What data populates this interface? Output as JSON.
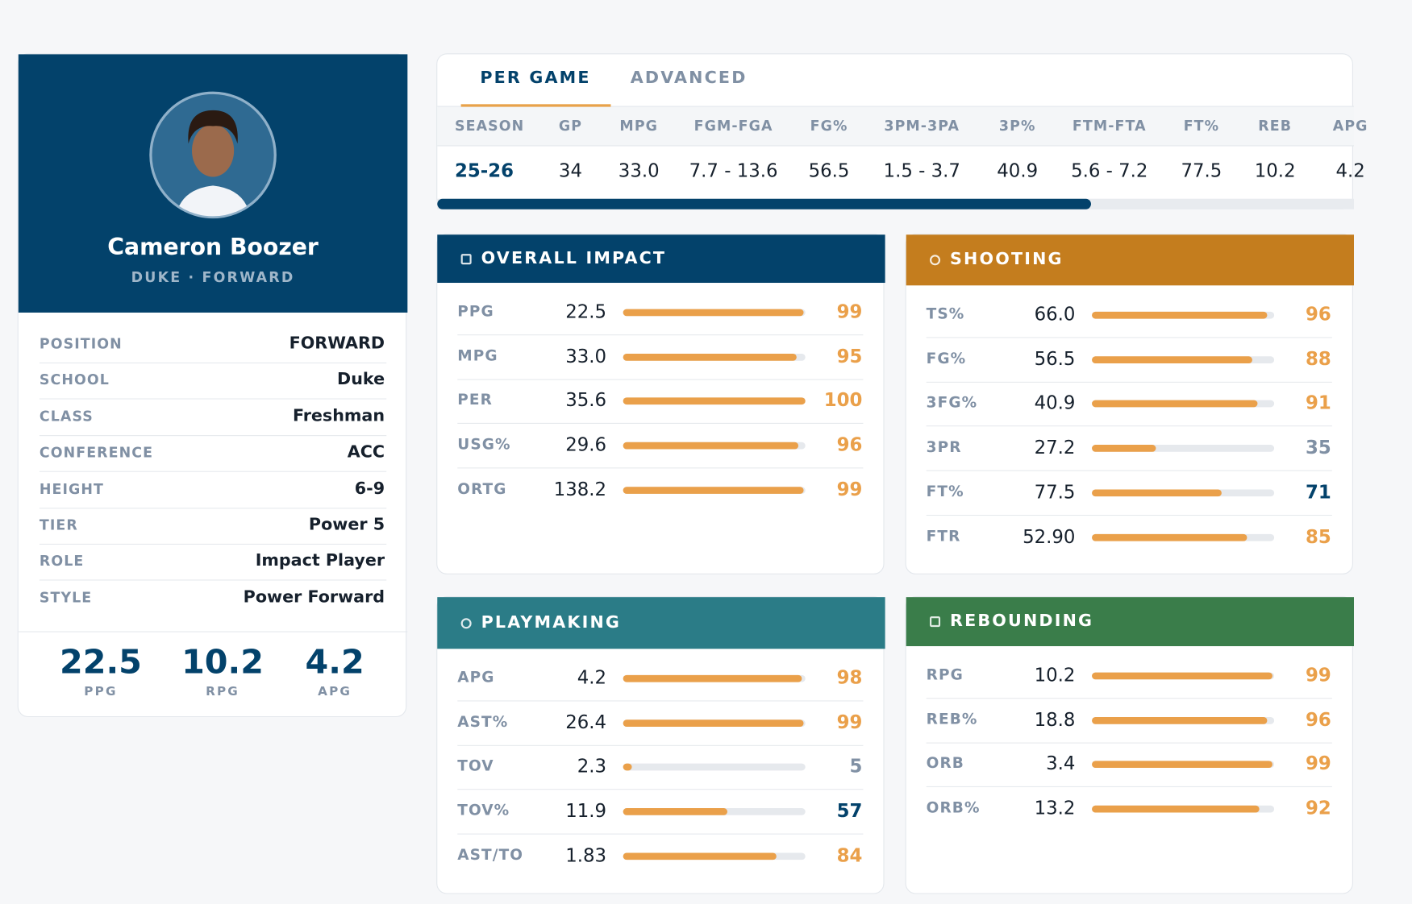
{
  "player": {
    "name": "Cameron Boozer",
    "subtitle": "DUKE · FORWARD",
    "info": [
      {
        "label": "POSITION",
        "value": "FORWARD"
      },
      {
        "label": "SCHOOL",
        "value": "Duke"
      },
      {
        "label": "CLASS",
        "value": "Freshman"
      },
      {
        "label": "CONFERENCE",
        "value": "ACC"
      },
      {
        "label": "HEIGHT",
        "value": "6-9"
      },
      {
        "label": "TIER",
        "value": "Power 5"
      },
      {
        "label": "ROLE",
        "value": "Impact Player"
      },
      {
        "label": "STYLE",
        "value": "Power Forward"
      }
    ],
    "stats": [
      {
        "value": "22.5",
        "label": "PPG"
      },
      {
        "value": "10.2",
        "label": "RPG"
      },
      {
        "value": "4.2",
        "label": "APG"
      }
    ]
  },
  "tabs": [
    "PER GAME",
    "ADVANCED"
  ],
  "table": {
    "columns": [
      "SEASON",
      "GP",
      "MPG",
      "FGM-FGA",
      "FG%",
      "3PM-3PA",
      "3P%",
      "FTM-FTA",
      "FT%",
      "REB",
      "APG"
    ],
    "rows": [
      [
        "25-26",
        "34",
        "33.0",
        "7.7 - 13.6",
        "56.5",
        "1.5 - 3.7",
        "40.9",
        "5.6 - 7.2",
        "77.5",
        "10.2",
        "4.2"
      ]
    ]
  },
  "panels": [
    {
      "title": "OVERALL IMPACT",
      "color": "#03426b",
      "rows": [
        {
          "label": "PPG",
          "value": "22.5",
          "percentile": 99
        },
        {
          "label": "MPG",
          "value": "33.0",
          "percentile": 95
        },
        {
          "label": "PER",
          "value": "35.6",
          "percentile": 100
        },
        {
          "label": "USG%",
          "value": "29.6",
          "percentile": 96
        },
        {
          "label": "ORTG",
          "value": "138.2",
          "percentile": 99
        }
      ]
    },
    {
      "title": "SHOOTING",
      "color": "#c47d1e",
      "rows": [
        {
          "label": "TS%",
          "value": "66.0",
          "percentile": 96
        },
        {
          "label": "FG%",
          "value": "56.5",
          "percentile": 88
        },
        {
          "label": "3FG%",
          "value": "40.9",
          "percentile": 91
        },
        {
          "label": "3PR",
          "value": "27.2",
          "percentile": 35
        },
        {
          "label": "FT%",
          "value": "77.5",
          "percentile": 71
        },
        {
          "label": "FTR",
          "value": "52.90",
          "percentile": 85
        }
      ]
    },
    {
      "title": "PLAYMAKING",
      "color": "#2b7c87",
      "rows": [
        {
          "label": "APG",
          "value": "4.2",
          "percentile": 98
        },
        {
          "label": "AST%",
          "value": "26.4",
          "percentile": 99
        },
        {
          "label": "TOV",
          "value": "2.3",
          "percentile": 5
        },
        {
          "label": "TOV%",
          "value": "11.9",
          "percentile": 57
        },
        {
          "label": "AST/TO",
          "value": "1.83",
          "percentile": 84
        }
      ]
    },
    {
      "title": "REBOUNDING",
      "color": "#3a7d4a",
      "rows": [
        {
          "label": "RPG",
          "value": "10.2",
          "percentile": 99
        },
        {
          "label": "REB%",
          "value": "18.8",
          "percentile": 96
        },
        {
          "label": "ORB",
          "value": "3.4",
          "percentile": 99
        },
        {
          "label": "ORB%",
          "value": "13.2",
          "percentile": 92
        }
      ]
    }
  ]
}
